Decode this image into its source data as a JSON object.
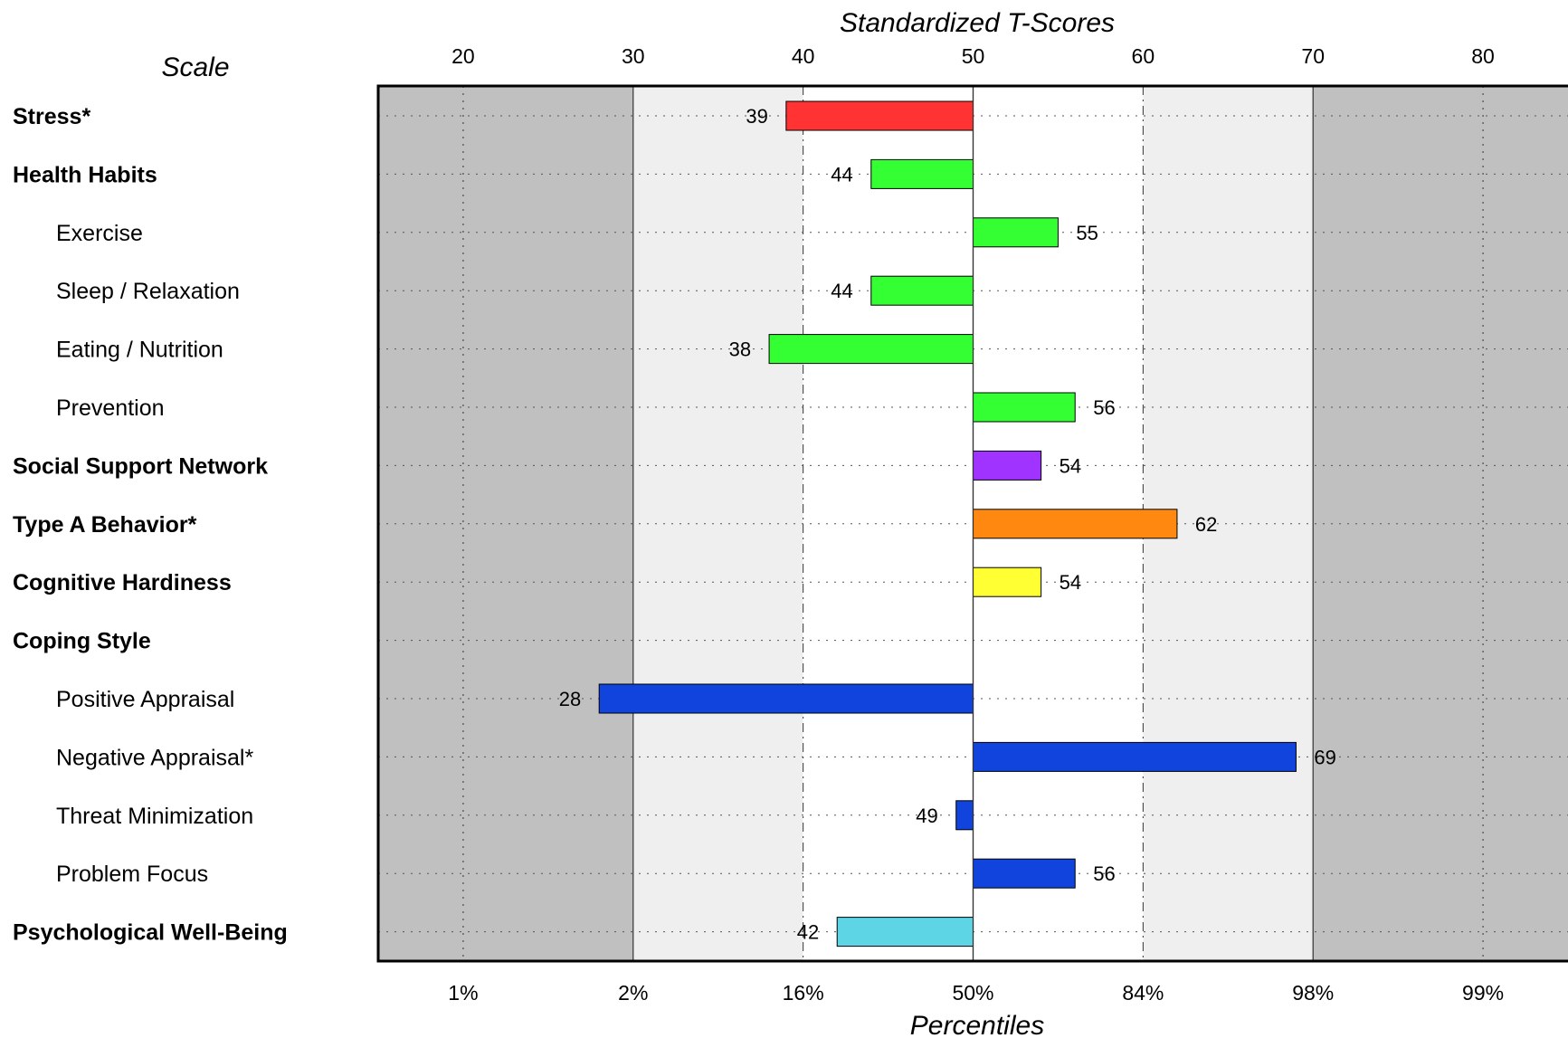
{
  "chart_data": {
    "type": "bar",
    "scale_header": "Scale",
    "title_top": "Standardized T-Scores",
    "title_bottom": "Percentiles",
    "xlim": [
      15,
      85
    ],
    "baseline": 50,
    "x_ticks": [
      20,
      30,
      40,
      50,
      60,
      70,
      80
    ],
    "percentile_ticks": [
      "1%",
      "2%",
      "16%",
      "50%",
      "84%",
      "98%",
      "99%"
    ],
    "bands": [
      {
        "from": 15,
        "to": 30,
        "color": "#c0c0c0"
      },
      {
        "from": 30,
        "to": 40,
        "color": "#efefef"
      },
      {
        "from": 40,
        "to": 60,
        "color": "#ffffff"
      },
      {
        "from": 60,
        "to": 70,
        "color": "#efefef"
      },
      {
        "from": 70,
        "to": 85,
        "color": "#c0c0c0"
      }
    ],
    "rows": [
      {
        "label": "Stress*",
        "bold": true,
        "indent": false,
        "value": 39,
        "color": "#ff3333"
      },
      {
        "label": "Health Habits",
        "bold": true,
        "indent": false,
        "value": 44,
        "color": "#33ff33"
      },
      {
        "label": "Exercise",
        "bold": false,
        "indent": true,
        "value": 55,
        "color": "#33ff33"
      },
      {
        "label": "Sleep / Relaxation",
        "bold": false,
        "indent": true,
        "value": 44,
        "color": "#33ff33"
      },
      {
        "label": "Eating / Nutrition",
        "bold": false,
        "indent": true,
        "value": 38,
        "color": "#33ff33"
      },
      {
        "label": "Prevention",
        "bold": false,
        "indent": true,
        "value": 56,
        "color": "#33ff33"
      },
      {
        "label": "Social Support Network",
        "bold": true,
        "indent": false,
        "value": 54,
        "color": "#a033ff"
      },
      {
        "label": "Type A Behavior*",
        "bold": true,
        "indent": false,
        "value": 62,
        "color": "#ff8811"
      },
      {
        "label": "Cognitive Hardiness",
        "bold": true,
        "indent": false,
        "value": 54,
        "color": "#ffff33"
      },
      {
        "label": "Coping Style",
        "bold": true,
        "indent": false,
        "value": null,
        "color": ""
      },
      {
        "label": "Positive Appraisal",
        "bold": false,
        "indent": true,
        "value": 28,
        "color": "#1144dd"
      },
      {
        "label": "Negative Appraisal*",
        "bold": false,
        "indent": true,
        "value": 69,
        "color": "#1144dd"
      },
      {
        "label": "Threat Minimization",
        "bold": false,
        "indent": true,
        "value": 49,
        "color": "#1144dd"
      },
      {
        "label": "Problem Focus",
        "bold": false,
        "indent": true,
        "value": 56,
        "color": "#1144dd"
      },
      {
        "label": "Psychological Well-Being",
        "bold": true,
        "indent": false,
        "value": 42,
        "color": "#5dd5e5"
      }
    ]
  }
}
